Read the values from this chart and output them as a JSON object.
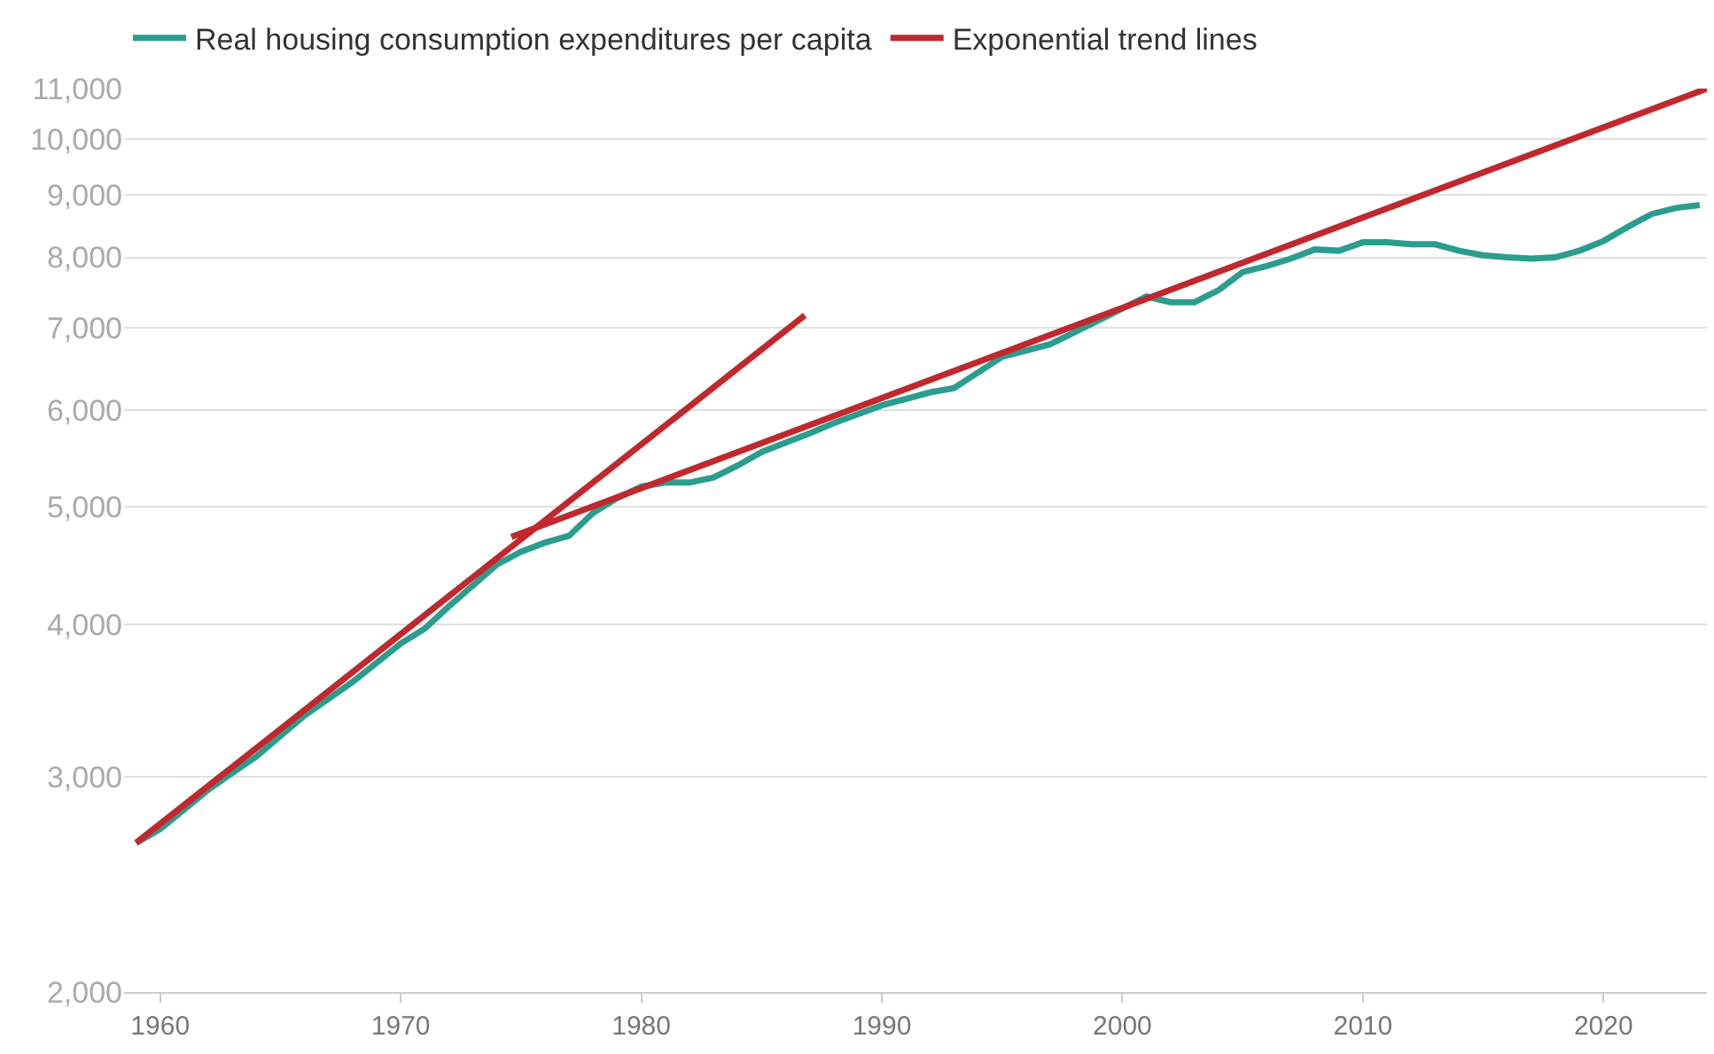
{
  "chart_data": {
    "type": "line",
    "log": true,
    "grid": "y",
    "legend": "top left",
    "marker": "none",
    "line_style": "solid",
    "xlim": [
      1958.5,
      2024.3
    ],
    "xticks": [
      1960,
      1970,
      1980,
      1990,
      2000,
      2010,
      2020
    ],
    "ylim": [
      2000,
      11000
    ],
    "yticks": [
      {
        "value": 2000,
        "label": "2,000"
      },
      {
        "value": 3000,
        "label": "3,000"
      },
      {
        "value": 4000,
        "label": "4,000"
      },
      {
        "value": 5000,
        "label": "5,000"
      },
      {
        "value": 6000,
        "label": "6,000"
      },
      {
        "value": 7000,
        "label": "7,000"
      },
      {
        "value": 8000,
        "label": "8,000"
      },
      {
        "value": 9000,
        "label": "9,000"
      },
      {
        "value": 10000,
        "label": "10,000"
      },
      {
        "value": 11000,
        "label": "11,000"
      }
    ],
    "series": [
      {
        "name": "Real housing consumption expenditures per capita",
        "color": "#2a9d8f",
        "x": [
          1959,
          1960,
          1962,
          1964,
          1966,
          1968,
          1970,
          1971,
          1972,
          1974,
          1975,
          1976,
          1977,
          1978,
          1979,
          1980,
          1981,
          1982,
          1983,
          1984,
          1985,
          1986,
          1987,
          1988,
          1990,
          1992,
          1993,
          1995,
          1997,
          1999,
          2001,
          2002,
          2003,
          2004,
          2005,
          2006,
          2007,
          2008,
          2009,
          2010,
          2011,
          2012,
          2013,
          2014,
          2015,
          2016,
          2017,
          2018,
          2019,
          2020,
          2021,
          2022,
          2023,
          2024
        ],
        "values": [
          2650,
          2720,
          2930,
          3120,
          3370,
          3590,
          3860,
          3970,
          4140,
          4480,
          4590,
          4670,
          4730,
          4940,
          5080,
          5190,
          5230,
          5230,
          5280,
          5400,
          5540,
          5640,
          5740,
          5850,
          6050,
          6200,
          6250,
          6630,
          6790,
          7100,
          7430,
          7350,
          7350,
          7520,
          7780,
          7870,
          7980,
          8120,
          8100,
          8230,
          8230,
          8200,
          8200,
          8100,
          8030,
          8000,
          7980,
          8000,
          8100,
          8250,
          8470,
          8680,
          8780,
          8830
        ]
      },
      {
        "name": "Exponential trend lines",
        "color": "#c0282d",
        "x": [
          1959,
          1986.8
        ],
        "values": [
          2650,
          7170
        ]
      },
      {
        "color": "#c0282d",
        "x": [
          1974.6,
          2024.3
        ],
        "values": [
          4720,
          11000
        ]
      }
    ]
  }
}
